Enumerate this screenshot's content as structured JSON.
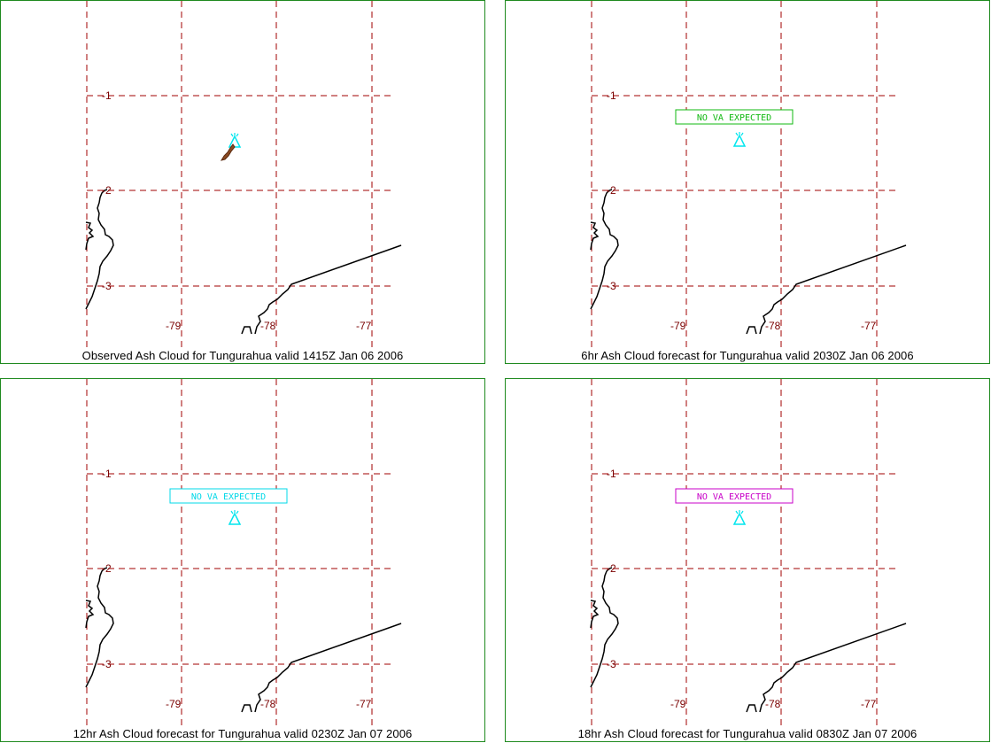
{
  "colors": {
    "frame": "#1f8a1f",
    "grid": "#a00000",
    "grid_label": "#7a0000",
    "coastline": "#000000",
    "volcano": "#00e5ee",
    "ash_observed": "#8b4a22"
  },
  "grid": {
    "lat_labels": [
      "-1",
      "-2",
      "-3"
    ],
    "lon_labels": [
      "-79",
      "-78",
      "-77"
    ]
  },
  "panels": [
    {
      "caption": "Observed Ash Cloud for Tungurahua valid 1415Z Jan 06 2006",
      "no_va_label": "",
      "no_va_color": ""
    },
    {
      "caption": "6hr Ash Cloud forecast for Tungurahua valid 2030Z Jan 06 2006",
      "no_va_label": "NO VA EXPECTED",
      "no_va_color": "#11b811"
    },
    {
      "caption": "12hr Ash Cloud forecast for Tungurahua valid 0230Z Jan 07 2006",
      "no_va_label": "NO VA EXPECTED",
      "no_va_color": "#00d8e8"
    },
    {
      "caption": "18hr Ash Cloud forecast for Tungurahua valid 0830Z Jan 07 2006",
      "no_va_label": "NO VA EXPECTED",
      "no_va_color": "#c800c8"
    }
  ]
}
